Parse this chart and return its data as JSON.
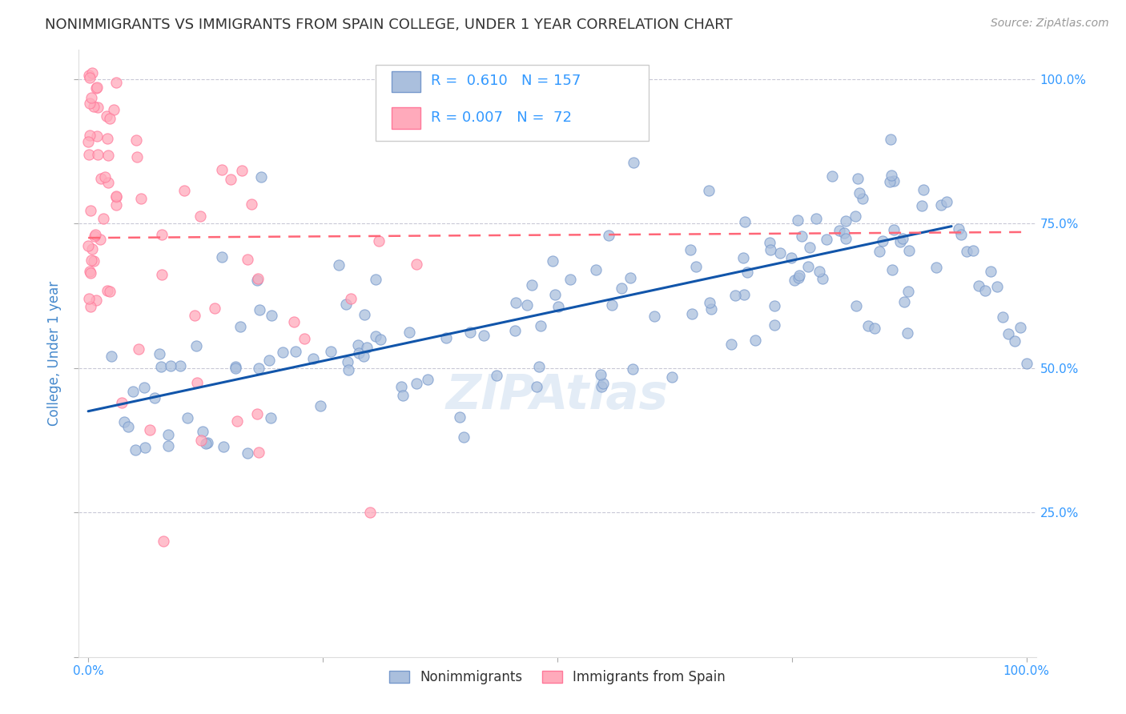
{
  "title": "NONIMMIGRANTS VS IMMIGRANTS FROM SPAIN COLLEGE, UNDER 1 YEAR CORRELATION CHART",
  "source": "Source: ZipAtlas.com",
  "ylabel": "College, Under 1 year",
  "blue_color": "#AABFDD",
  "blue_edge_color": "#7799CC",
  "pink_color": "#FFAABB",
  "pink_edge_color": "#FF7799",
  "blue_line_color": "#1155AA",
  "pink_line_color": "#FF6677",
  "grid_color": "#BBBBCC",
  "legend_blue_label": "Nonimmigrants",
  "legend_pink_label": "Immigrants from Spain",
  "R_blue": 0.61,
  "N_blue": 157,
  "R_pink": 0.007,
  "N_pink": 72,
  "blue_scatter_seed": 42,
  "pink_scatter_seed": 99,
  "watermark": "ZIPAtlas",
  "title_color": "#333333",
  "title_fontsize": 13,
  "axis_color": "#3399FF",
  "axis_label_color": "#4488CC",
  "background_color": "#FFFFFF",
  "blue_line_x": [
    0.0,
    0.92
  ],
  "blue_line_y": [
    0.425,
    0.745
  ],
  "pink_line_x": [
    0.0,
    1.0
  ],
  "pink_line_y": [
    0.725,
    0.735
  ],
  "ylim_min": 0.0,
  "ylim_max": 1.05,
  "xlim_min": -0.01,
  "xlim_max": 1.01
}
